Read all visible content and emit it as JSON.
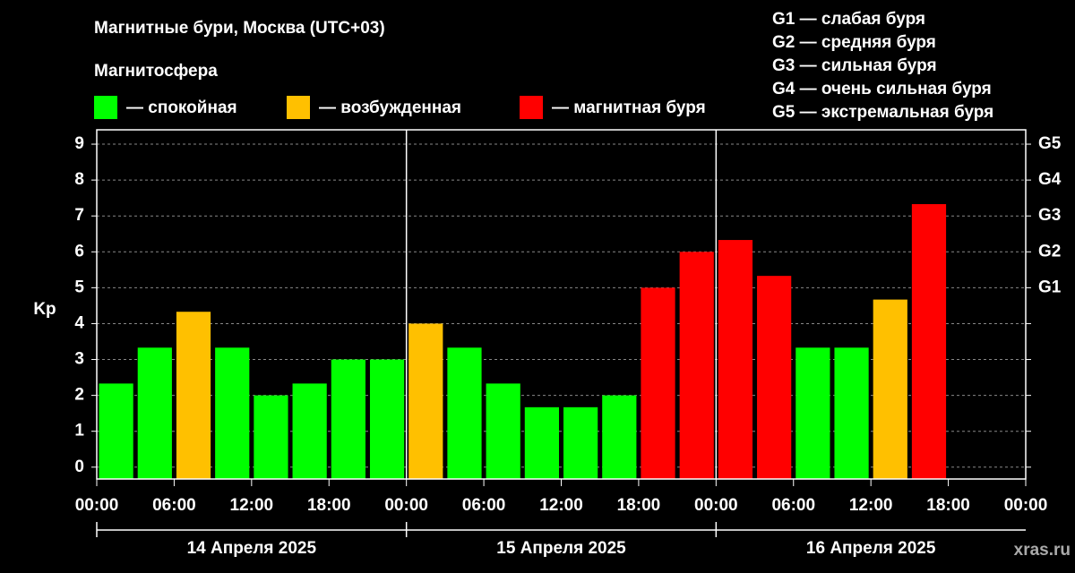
{
  "chart_data": {
    "type": "bar",
    "title": "Магнитные бури, Москва (UTC+03)",
    "subtitle": "Магнитосфера",
    "y_label": "Kp",
    "watermark": "xras.ru",
    "storm_scale": [
      "G1 — слабая буря",
      "G2 — средняя буря",
      "G3 — сильная буря",
      "G4 — очень сильная буря",
      "G5 — экстремальная буря"
    ],
    "legend": [
      {
        "label": "— спокойная",
        "color": "#00ff00"
      },
      {
        "label": "— возбужденная",
        "color": "#ffc000"
      },
      {
        "label": "— магнитная буря",
        "color": "#ff0000"
      }
    ],
    "x": [
      0,
      3,
      6,
      9,
      12,
      15,
      18,
      21,
      24,
      27,
      30,
      33,
      36,
      39,
      42,
      45,
      48,
      51,
      54,
      57,
      60,
      63
    ],
    "values": [
      2.33,
      3.33,
      4.33,
      3.33,
      2,
      2.33,
      3,
      3,
      4,
      3.33,
      2.33,
      1.67,
      1.67,
      2,
      5,
      6,
      6.33,
      5.33,
      3.33,
      3.33,
      4.67,
      7.33
    ],
    "colors": [
      "#00ff00",
      "#00ff00",
      "#ffc000",
      "#00ff00",
      "#00ff00",
      "#00ff00",
      "#00ff00",
      "#00ff00",
      "#ffc000",
      "#00ff00",
      "#00ff00",
      "#00ff00",
      "#00ff00",
      "#00ff00",
      "#ff0000",
      "#ff0000",
      "#ff0000",
      "#ff0000",
      "#00ff00",
      "#00ff00",
      "#ffc000",
      "#ff0000"
    ],
    "xlim": [
      0,
      72
    ],
    "xticks": [
      {
        "value": 0,
        "label": "00:00"
      },
      {
        "value": 6,
        "label": "06:00"
      },
      {
        "value": 12,
        "label": "12:00"
      },
      {
        "value": 18,
        "label": "18:00"
      },
      {
        "value": 24,
        "label": "00:00"
      },
      {
        "value": 30,
        "label": "06:00"
      },
      {
        "value": 36,
        "label": "12:00"
      },
      {
        "value": 42,
        "label": "18:00"
      },
      {
        "value": 48,
        "label": "00:00"
      },
      {
        "value": 54,
        "label": "06:00"
      },
      {
        "value": 60,
        "label": "12:00"
      },
      {
        "value": 66,
        "label": "18:00"
      },
      {
        "value": 72,
        "label": "00:00"
      }
    ],
    "day_groups": [
      {
        "label": "14 Апреля 2025",
        "from": 0,
        "to": 24
      },
      {
        "label": "15 Апреля 2025",
        "from": 24,
        "to": 48
      },
      {
        "label": "16 Апреля 2025",
        "from": 48,
        "to": 72
      }
    ],
    "ylim": [
      -0.33,
      9.4
    ],
    "yticks": [
      0,
      1,
      2,
      3,
      4,
      5,
      6,
      7,
      8,
      9
    ],
    "y2ticks": [
      {
        "value": 5,
        "label": "G1"
      },
      {
        "value": 6,
        "label": "G2"
      },
      {
        "value": 7,
        "label": "G3"
      },
      {
        "value": 8,
        "label": "G4"
      },
      {
        "value": 9,
        "label": "G5"
      }
    ],
    "grid": true
  }
}
